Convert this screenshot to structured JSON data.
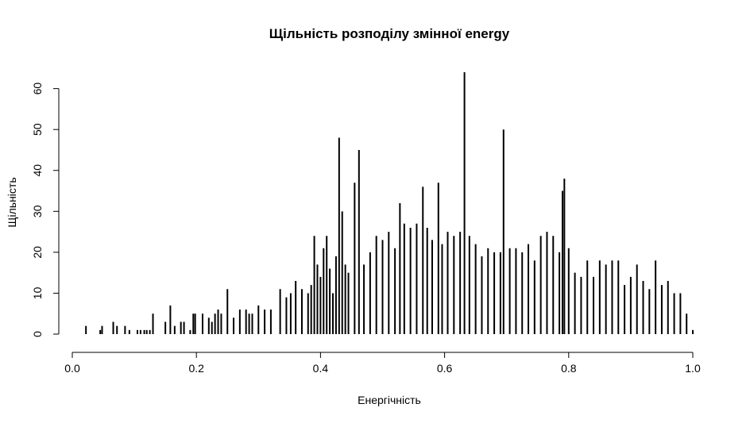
{
  "chart_data": {
    "type": "bar",
    "title": "Щільність розподілу змінної energy",
    "xlabel": "Енергічність",
    "ylabel": "Щільність",
    "xlim": [
      0,
      1
    ],
    "ylim": [
      0,
      64
    ],
    "grid": false,
    "x_ticks": [
      "0.0",
      "0.2",
      "0.4",
      "0.6",
      "0.8",
      "1.0"
    ],
    "y_ticks": [
      "0",
      "10",
      "20",
      "30",
      "40",
      "50",
      "60"
    ],
    "bar_color": "#000000",
    "x": [
      0.022,
      0.045,
      0.048,
      0.066,
      0.072,
      0.085,
      0.092,
      0.105,
      0.11,
      0.116,
      0.12,
      0.125,
      0.13,
      0.15,
      0.158,
      0.165,
      0.175,
      0.18,
      0.19,
      0.195,
      0.198,
      0.21,
      0.22,
      0.225,
      0.23,
      0.235,
      0.24,
      0.25,
      0.26,
      0.27,
      0.28,
      0.285,
      0.29,
      0.3,
      0.31,
      0.32,
      0.335,
      0.345,
      0.352,
      0.36,
      0.37,
      0.38,
      0.385,
      0.39,
      0.395,
      0.4,
      0.405,
      0.41,
      0.415,
      0.42,
      0.425,
      0.43,
      0.435,
      0.44,
      0.445,
      0.455,
      0.462,
      0.47,
      0.48,
      0.49,
      0.5,
      0.51,
      0.52,
      0.528,
      0.535,
      0.545,
      0.555,
      0.565,
      0.572,
      0.58,
      0.59,
      0.596,
      0.605,
      0.615,
      0.625,
      0.632,
      0.64,
      0.65,
      0.66,
      0.67,
      0.68,
      0.69,
      0.695,
      0.705,
      0.715,
      0.725,
      0.735,
      0.745,
      0.755,
      0.765,
      0.775,
      0.785,
      0.79,
      0.793,
      0.8,
      0.81,
      0.82,
      0.83,
      0.84,
      0.85,
      0.86,
      0.87,
      0.88,
      0.89,
      0.9,
      0.91,
      0.92,
      0.93,
      0.94,
      0.95,
      0.96,
      0.97,
      0.98,
      0.99,
      1.0
    ],
    "values": [
      2,
      1,
      2,
      3,
      2,
      2,
      1,
      1,
      1,
      1,
      1,
      1,
      5,
      3,
      7,
      2,
      3,
      3,
      1,
      5,
      5,
      5,
      4,
      3,
      5,
      6,
      5,
      11,
      4,
      6,
      6,
      5,
      5,
      7,
      6,
      6,
      11,
      9,
      10,
      13,
      11,
      10,
      12,
      24,
      17,
      14,
      21,
      24,
      16,
      10,
      19,
      48,
      30,
      17,
      15,
      37,
      45,
      17,
      20,
      24,
      23,
      25,
      21,
      32,
      27,
      26,
      27,
      36,
      26,
      23,
      37,
      22,
      25,
      24,
      25,
      64,
      24,
      22,
      19,
      21,
      20,
      20,
      50,
      21,
      21,
      20,
      22,
      18,
      24,
      25,
      24,
      20,
      35,
      38,
      21,
      15,
      14,
      18,
      14,
      18,
      17,
      18,
      18,
      12,
      14,
      17,
      13,
      11,
      18,
      12,
      13,
      10,
      10,
      5,
      1
    ]
  }
}
